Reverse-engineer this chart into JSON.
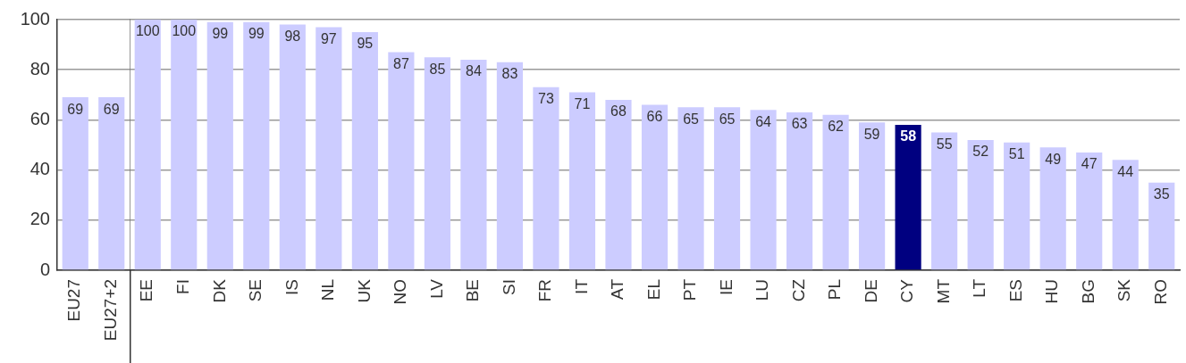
{
  "chart_data": [
    {
      "type": "bar",
      "categories": [
        "EU27",
        "EU27+2"
      ],
      "values": [
        69,
        69
      ],
      "colors": [
        "#ccccff",
        "#ccccff"
      ],
      "ylim": [
        0,
        100
      ],
      "yticks": [
        0,
        20,
        40,
        60,
        80,
        100
      ],
      "grid": "y",
      "data_labels": true
    },
    {
      "type": "bar",
      "categories": [
        "EE",
        "FI",
        "DK",
        "SE",
        "IS",
        "NL",
        "UK",
        "NO",
        "LV",
        "BE",
        "SI",
        "FR",
        "IT",
        "AT",
        "EL",
        "PT",
        "IE",
        "LU",
        "CZ",
        "PL",
        "DE",
        "CY",
        "MT",
        "LT",
        "ES",
        "HU",
        "BG",
        "SK",
        "RO"
      ],
      "values": [
        100,
        100,
        99,
        99,
        98,
        97,
        95,
        87,
        85,
        84,
        83,
        73,
        71,
        68,
        66,
        65,
        65,
        64,
        63,
        62,
        59,
        58,
        55,
        52,
        51,
        49,
        47,
        44,
        35
      ],
      "colors": [
        "#ccccff",
        "#ccccff",
        "#ccccff",
        "#ccccff",
        "#ccccff",
        "#ccccff",
        "#ccccff",
        "#ccccff",
        "#ccccff",
        "#ccccff",
        "#ccccff",
        "#ccccff",
        "#ccccff",
        "#ccccff",
        "#ccccff",
        "#ccccff",
        "#ccccff",
        "#ccccff",
        "#ccccff",
        "#ccccff",
        "#ccccff",
        "#000080",
        "#ccccff",
        "#ccccff",
        "#ccccff",
        "#ccccff",
        "#ccccff",
        "#ccccff",
        "#ccccff"
      ],
      "ylim": [
        0,
        100
      ],
      "yticks": [
        0,
        20,
        40,
        60,
        80,
        100
      ],
      "grid": "y",
      "data_labels": true,
      "tick_labels": "x"
    }
  ]
}
